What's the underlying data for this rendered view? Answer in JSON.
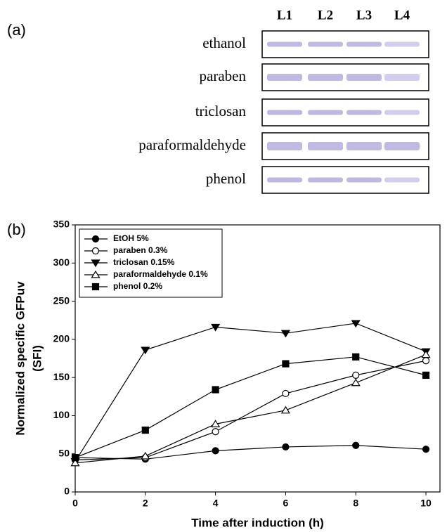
{
  "panel_a": {
    "label": "(a)",
    "lanes": [
      "L1",
      "L2",
      "L3",
      "L4"
    ],
    "rows": [
      "ethanol",
      "paraben",
      "triclosan",
      "paraformaldehyde",
      "phenol"
    ]
  },
  "chart_data": {
    "type": "line",
    "panel_label": "(b)",
    "xlabel": "Time after induction (h)",
    "ylabel": [
      "Normalized specific GFPuv",
      "(SFI)"
    ],
    "x": [
      0,
      2,
      4,
      6,
      8,
      10
    ],
    "xlim": [
      0,
      10.4
    ],
    "xticks": [
      0,
      2,
      4,
      6,
      8,
      10
    ],
    "ylim": [
      0,
      350
    ],
    "yticks": [
      0,
      50,
      100,
      150,
      200,
      250,
      300,
      350
    ],
    "legend": "upper left",
    "series": [
      {
        "name": "EtOH 5%",
        "color": "#000000",
        "marker": "circle-filled",
        "values": [
          45,
          43,
          54,
          59,
          61,
          56
        ]
      },
      {
        "name": "paraben 0.3%",
        "color": "#000000",
        "marker": "circle-open",
        "values": [
          42,
          45,
          79,
          129,
          153,
          172
        ]
      },
      {
        "name": "triclosan 0.15%",
        "color": "#000000",
        "marker": "triangle-down-filled",
        "values": [
          40,
          186,
          216,
          208,
          221,
          184
        ]
      },
      {
        "name": "paraformaldehyde 0.1%",
        "color": "#000000",
        "marker": "triangle-up-open",
        "values": [
          38,
          47,
          89,
          107,
          143,
          180
        ]
      },
      {
        "name": "phenol 0.2%",
        "color": "#000000",
        "marker": "square-filled",
        "values": [
          45,
          81,
          134,
          168,
          177,
          153
        ]
      }
    ]
  }
}
